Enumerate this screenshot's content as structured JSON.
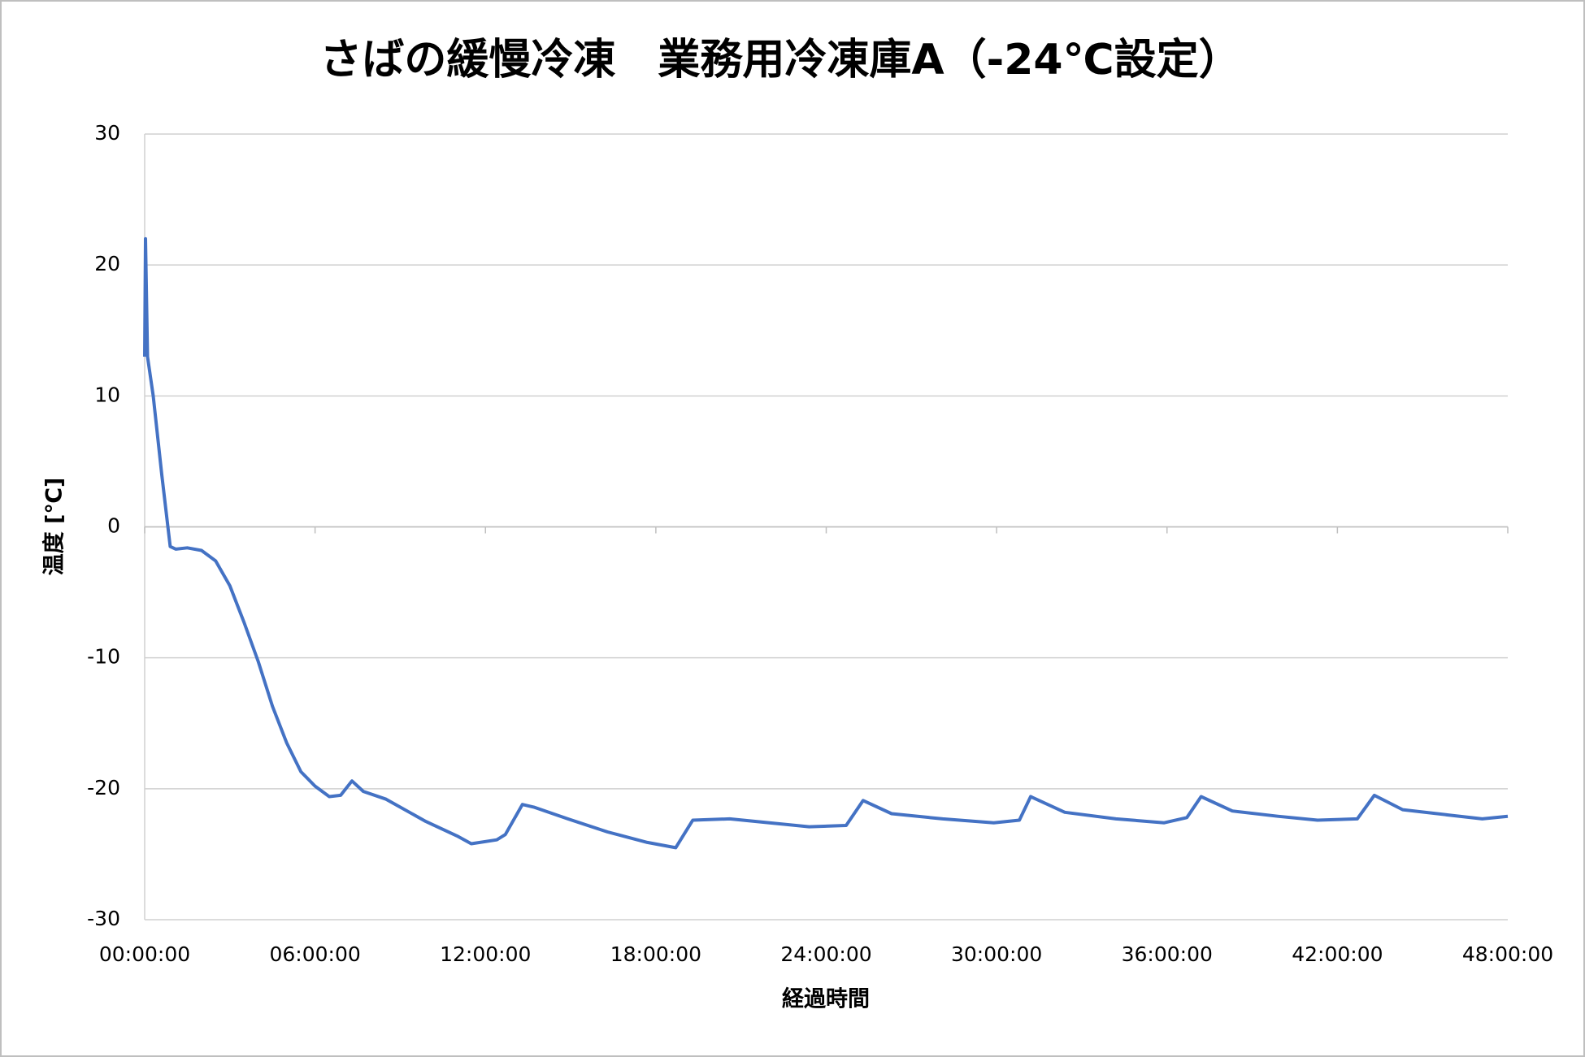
{
  "chart_data": {
    "type": "line",
    "title": "さばの緩慢冷凍　業務用冷凍庫A（-24℃設定）",
    "x_label": "経過時間",
    "y_label": "温度 [℃]",
    "xlim": [
      0,
      48
    ],
    "xticks": [
      {
        "value": 0,
        "label": "00:00:00"
      },
      {
        "value": 6,
        "label": "06:00:00"
      },
      {
        "value": 12,
        "label": "12:00:00"
      },
      {
        "value": 18,
        "label": "18:00:00"
      },
      {
        "value": 24,
        "label": "24:00:00"
      },
      {
        "value": 30,
        "label": "30:00:00"
      },
      {
        "value": 36,
        "label": "36:00:00"
      },
      {
        "value": 42,
        "label": "42:00:00"
      },
      {
        "value": 48,
        "label": "48:00:00"
      }
    ],
    "ylim": [
      -30,
      30
    ],
    "yticks": [
      -30,
      -20,
      -10,
      0,
      10,
      20,
      30
    ],
    "grid": true,
    "x": [
      0,
      0.03,
      0.1,
      0.3,
      0.6,
      0.9,
      1.1,
      1.5,
      2.0,
      2.5,
      3.0,
      3.5,
      4.0,
      4.5,
      5.0,
      5.5,
      6.0,
      6.5,
      6.9,
      7.3,
      7.7,
      8.5,
      9.9,
      11.0,
      11.5,
      12.4,
      12.7,
      13.3,
      13.7,
      14.9,
      16.3,
      17.7,
      18.7,
      19.3,
      20.6,
      22.0,
      23.4,
      24.7,
      25.3,
      26.3,
      28.1,
      29.9,
      30.8,
      31.2,
      32.4,
      34.2,
      35.9,
      36.7,
      37.2,
      38.3,
      39.9,
      41.3,
      42.7,
      43.3,
      44.3,
      45.9,
      47.1,
      48.0
    ],
    "series": [
      {
        "color": "#4472c4",
        "values": [
          13,
          22,
          13,
          10,
          4,
          -1.5,
          -1.7,
          -1.6,
          -1.8,
          -2.6,
          -4.5,
          -7.3,
          -10.3,
          -13.7,
          -16.5,
          -18.7,
          -19.8,
          -20.6,
          -20.5,
          -19.4,
          -20.2,
          -20.8,
          -22.5,
          -23.6,
          -24.2,
          -23.9,
          -23.5,
          -21.2,
          -21.4,
          -22.3,
          -23.3,
          -24.1,
          -24.5,
          -22.4,
          -22.3,
          -22.6,
          -22.9,
          -22.8,
          -20.9,
          -21.9,
          -22.3,
          -22.6,
          -22.4,
          -20.6,
          -21.8,
          -22.3,
          -22.6,
          -22.2,
          -20.6,
          -21.7,
          -22.1,
          -22.4,
          -22.3,
          -20.5,
          -21.6,
          -22.0,
          -22.3,
          -22.1
        ]
      }
    ]
  }
}
